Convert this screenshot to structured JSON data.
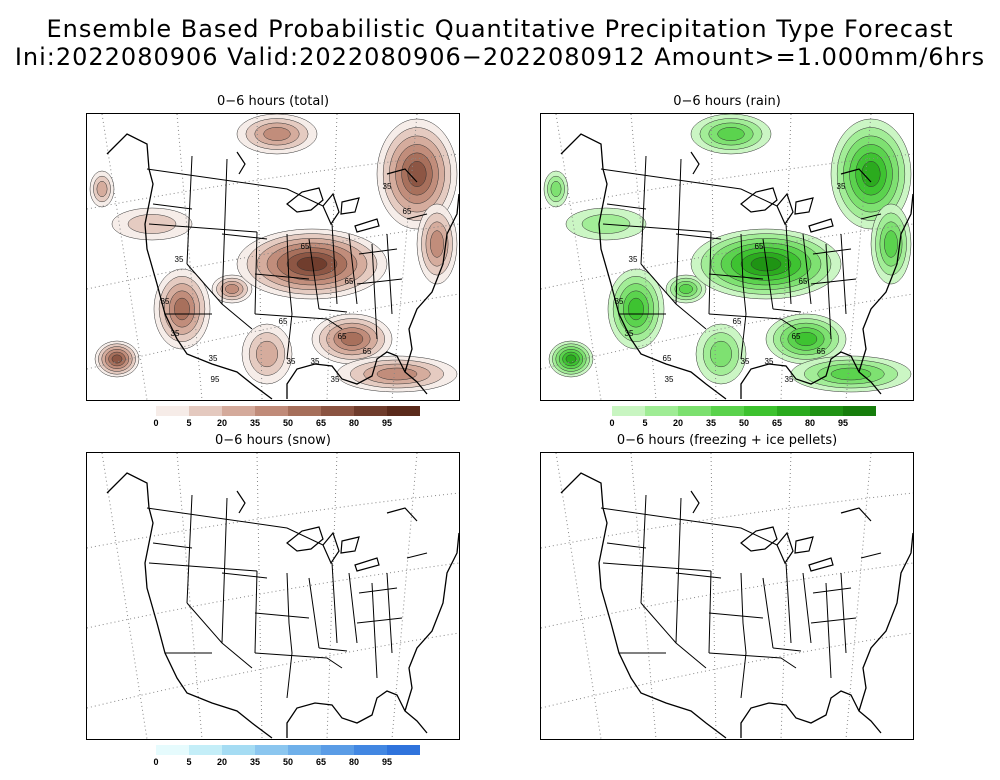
{
  "title_line1": "Ensemble Based Probabilistic Quantitative Precipitation Type Forecast",
  "title_line2": "Ini:2022080906 Valid:2022080906−2022080912 Amount>=1.000mm/6hrs",
  "panels": [
    {
      "title": "0−6 hours (total)",
      "palette": [
        "#f6ece8",
        "#e4c9bf",
        "#d4aa9b",
        "#c08b79",
        "#a66f5b",
        "#8b5442",
        "#6f3c2c",
        "#5a2a1b"
      ],
      "contour_labels": [
        "35",
        "65",
        "35",
        "65",
        "35",
        "65",
        "35",
        "65",
        "35",
        "95",
        "65",
        "35",
        "35",
        "35",
        "65"
      ]
    },
    {
      "title": "0−6 hours (rain)",
      "palette": [
        "#c8f5c1",
        "#9fec95",
        "#7ce06f",
        "#5ad24c",
        "#3dc22f",
        "#2aaa1e",
        "#1f9214",
        "#167d0c"
      ],
      "contour_labels": [
        "35",
        "65",
        "35",
        "65",
        "35",
        "65",
        "35",
        "65",
        "35",
        "35",
        "65",
        "35",
        "35",
        "65"
      ]
    },
    {
      "title": "0−6 hours (snow)",
      "palette": [
        "#e6fbfd",
        "#c4eef8",
        "#a5dcf3",
        "#8bc6ef",
        "#6fb0ea",
        "#5a9ce6",
        "#4287e2",
        "#2f73dc"
      ]
    },
    {
      "title": "0−6 hours (freezing + ice pellets)"
    }
  ],
  "colorbar_ticks": [
    "0",
    "5",
    "20",
    "35",
    "50",
    "65",
    "80",
    "95"
  ]
}
